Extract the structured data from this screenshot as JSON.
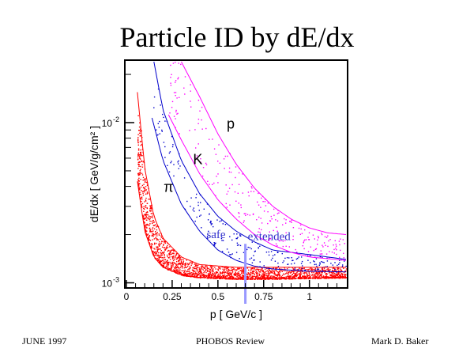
{
  "title": "Particle ID by dE/dx",
  "footer": {
    "left": "JUNE 1997",
    "center": "PHOBOS Review",
    "right": "Mark D. Baker"
  },
  "colors": {
    "pion": "#ff0000",
    "kaon": "#0000cc",
    "proton": "#ff00ff",
    "cutline": "#9999ff",
    "region_text": "#3333cc"
  },
  "chart_data": {
    "type": "scatter",
    "xlabel": "p [ GeV/c ]",
    "ylabel": "dE/dx  [ GeV/g/cm² ]",
    "xlim": [
      0,
      1.2
    ],
    "ylim": [
      0.00095,
      0.024
    ],
    "yscale": "log",
    "x_ticks": [
      {
        "value": 0,
        "label": "0"
      },
      {
        "value": 0.25,
        "label": "0.25"
      },
      {
        "value": 0.5,
        "label": "0.5"
      },
      {
        "value": 0.75,
        "label": "0.75"
      },
      {
        "value": 1.0,
        "label": "1"
      }
    ],
    "y_ticks": [
      {
        "value": 0.001,
        "label": "10",
        "exp": "-3"
      },
      {
        "value": 0.01,
        "label": "10",
        "exp": "-2"
      }
    ],
    "series": [
      {
        "name": "π",
        "color": "#ff0000",
        "upper": {
          "x": [
            0.06,
            0.1,
            0.15,
            0.2,
            0.3,
            0.4,
            0.6,
            0.8,
            1.0,
            1.2
          ],
          "y": [
            0.0155,
            0.0052,
            0.0026,
            0.0019,
            0.00145,
            0.0013,
            0.00125,
            0.00125,
            0.00125,
            0.00125
          ]
        },
        "lower": {
          "x": [
            0.06,
            0.1,
            0.15,
            0.2,
            0.3,
            0.4,
            0.6,
            0.8,
            1.0,
            1.2
          ],
          "y": [
            0.0043,
            0.0021,
            0.00145,
            0.00125,
            0.00112,
            0.00108,
            0.00106,
            0.00106,
            0.00107,
            0.00108
          ]
        }
      },
      {
        "name": "K",
        "color": "#0000cc",
        "upper": {
          "x": [
            0.15,
            0.2,
            0.3,
            0.4,
            0.5,
            0.6,
            0.7,
            0.8,
            1.0,
            1.2
          ],
          "y": [
            0.024,
            0.012,
            0.0058,
            0.0036,
            0.0026,
            0.0021,
            0.0018,
            0.0016,
            0.0015,
            0.0014
          ]
        },
        "lower": {
          "x": [
            0.14,
            0.2,
            0.3,
            0.4,
            0.5,
            0.6,
            0.7,
            0.8,
            1.0,
            1.2
          ],
          "y": [
            0.0107,
            0.0058,
            0.0031,
            0.0021,
            0.0016,
            0.00138,
            0.00127,
            0.00122,
            0.00118,
            0.00117
          ]
        }
      },
      {
        "name": "p",
        "color": "#ff00ff",
        "upper": {
          "x": [
            0.3,
            0.4,
            0.5,
            0.6,
            0.7,
            0.8,
            0.9,
            1.0,
            1.1,
            1.2
          ],
          "y": [
            0.024,
            0.0145,
            0.0085,
            0.0055,
            0.0039,
            0.003,
            0.0025,
            0.0022,
            0.00205,
            0.002
          ]
        },
        "lower": {
          "x": [
            0.23,
            0.3,
            0.4,
            0.5,
            0.6,
            0.7,
            0.8,
            0.9,
            1.0,
            1.2
          ],
          "y": [
            0.0112,
            0.0078,
            0.0048,
            0.0033,
            0.0025,
            0.002,
            0.00172,
            0.00155,
            0.00145,
            0.00138
          ]
        }
      }
    ],
    "annotations": [
      {
        "text": "π",
        "x": 0.23,
        "y": 0.0037
      },
      {
        "text": "K",
        "x": 0.39,
        "y": 0.0055
      },
      {
        "text": "p",
        "x": 0.57,
        "y": 0.0092
      },
      {
        "text": "safe",
        "x": 0.49,
        "y": 0.0019
      },
      {
        "text": "extended",
        "x": 0.78,
        "y": 0.00185
      }
    ],
    "cut_line_x": 0.65,
    "grid": false
  }
}
